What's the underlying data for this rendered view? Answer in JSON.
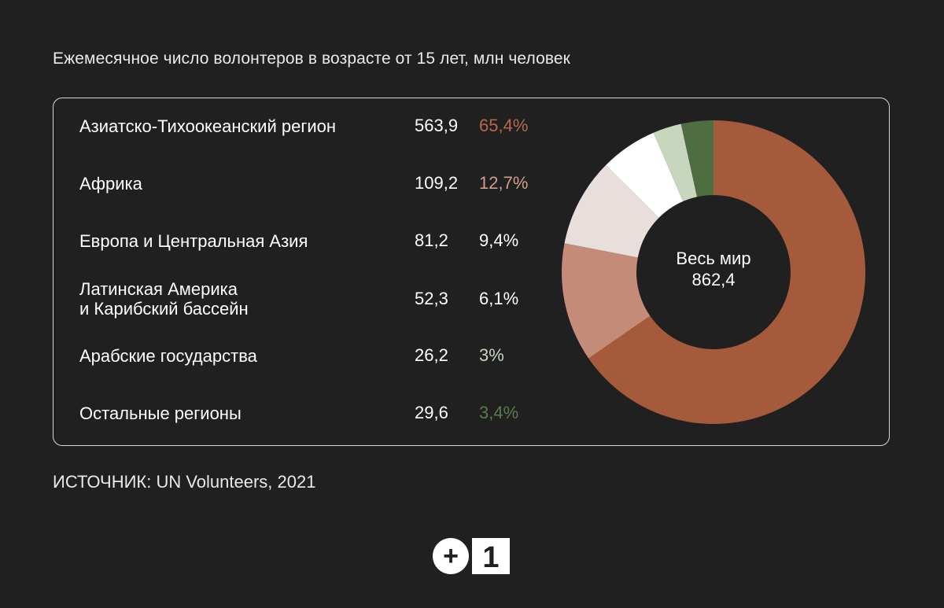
{
  "subtitle": "Ежемесячное число волонтеров в возрасте от 15 лет, млн человек",
  "source": "ИСТОЧНИК: UN Volunteers, 2021",
  "chart_data": {
    "type": "pie",
    "donut": true,
    "title": "Ежемесячное число волонтеров в возрасте от 15 лет, млн человек",
    "center_label": {
      "line1": "Весь мир",
      "line2": "862,4"
    },
    "categories": [
      "Азиатско-Тихоокеанский регион",
      "Африка",
      "Европа и Центральная Азия",
      "Латинская Америка и Карибский бассейн",
      "Арабские государства",
      "Остальные регионы"
    ],
    "values": [
      563.9,
      109.2,
      81.2,
      52.3,
      26.2,
      29.6
    ],
    "value_labels": [
      "563,9",
      "109,2",
      "81,2",
      "52,3",
      "26,2",
      "29,6"
    ],
    "percent_labels": [
      "65,4%",
      "12,7%",
      "9,4%",
      "6,1%",
      "3%",
      "3,4%"
    ],
    "slice_colors": [
      "#a55b3b",
      "#c48c78",
      "#e8dedb",
      "#ffffff",
      "#c8d6be",
      "#4e6e42"
    ],
    "percent_colors": [
      "#b8684a",
      "#d39e86",
      "#ffffff",
      "#ffffff",
      "#c8d6be",
      "#5a7a4c"
    ]
  },
  "rows": [
    {
      "region_line1": "Азиатско-Тихоокеанский регион",
      "region_line2": "",
      "value": "563,9",
      "share": "65,4%"
    },
    {
      "region_line1": "Африка",
      "region_line2": "",
      "value": "109,2",
      "share": "12,7%"
    },
    {
      "region_line1": "Европа и Центральная Азия",
      "region_line2": "",
      "value": "81,2",
      "share": "9,4%"
    },
    {
      "region_line1": "Латинская Америка",
      "region_line2": "и Карибский бассейн",
      "value": "52,3",
      "share": "6,1%"
    },
    {
      "region_line1": "Арабские государства",
      "region_line2": "",
      "value": "26,2",
      "share": "3%"
    },
    {
      "region_line1": "Остальные регионы",
      "region_line2": "",
      "value": "29,6",
      "share": "3,4%"
    }
  ],
  "logo": {
    "plus": "+",
    "one": "1"
  }
}
